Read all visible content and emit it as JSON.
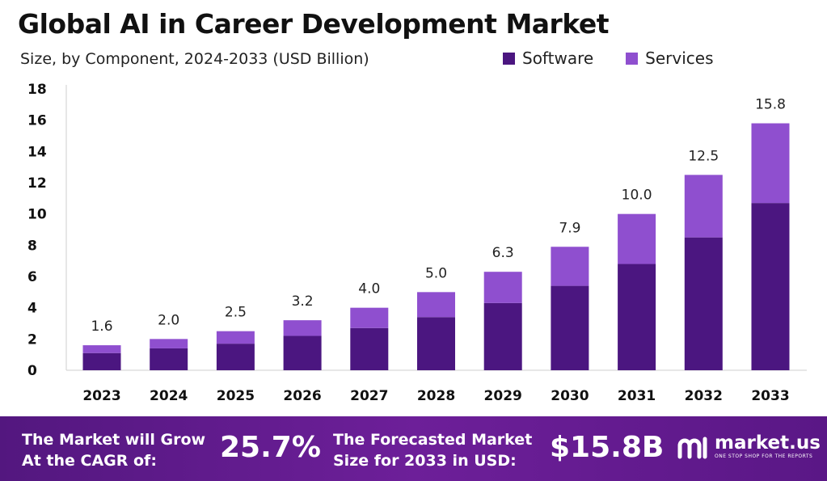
{
  "chart_data": {
    "type": "bar",
    "stacked": true,
    "title": "Global AI in Career Development Market",
    "subtitle": "Size, by Component, 2024-2033 (USD Billion)",
    "categories": [
      "2023",
      "2024",
      "2025",
      "2026",
      "2027",
      "2028",
      "2029",
      "2030",
      "2031",
      "2032",
      "2033"
    ],
    "series": [
      {
        "name": "Software",
        "color": "#4b1680",
        "values": [
          1.1,
          1.4,
          1.7,
          2.2,
          2.7,
          3.4,
          4.3,
          5.4,
          6.8,
          8.5,
          10.7
        ]
      },
      {
        "name": "Services",
        "color": "#8f4fcf",
        "values": [
          0.5,
          0.6,
          0.8,
          1.0,
          1.3,
          1.6,
          2.0,
          2.5,
          3.2,
          4.0,
          5.1
        ]
      }
    ],
    "totals": [
      "1.6",
      "2.0",
      "2.5",
      "3.2",
      "4.0",
      "5.0",
      "6.3",
      "7.9",
      "10.0",
      "12.5",
      "15.8"
    ],
    "ylim": [
      0,
      18
    ],
    "yticks": [
      0,
      2,
      4,
      6,
      8,
      10,
      12,
      14,
      16,
      18
    ],
    "legend_position": "top-right",
    "grid": false
  },
  "banner": {
    "cagr_text_line1": "The Market will Grow",
    "cagr_text_line2": "At the CAGR of:",
    "cagr_value": "25.7%",
    "forecast_text_line1": "The Forecasted Market",
    "forecast_text_line2": "Size for 2033 in USD:",
    "forecast_value": "$15.8B",
    "logo_name": "market.us",
    "logo_tagline": "ONE STOP SHOP FOR THE REPORTS"
  },
  "colors": {
    "banner_background": "#5e1a8a",
    "software": "#4b1680",
    "services": "#8f4fcf"
  }
}
